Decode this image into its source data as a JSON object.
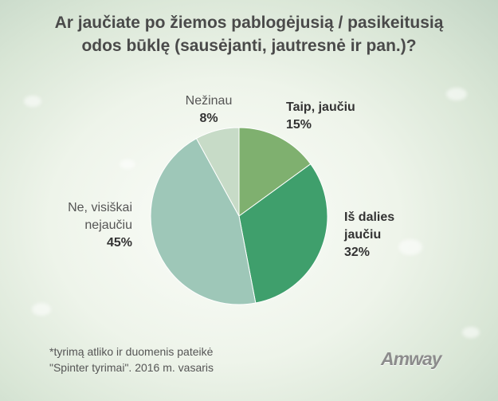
{
  "title": {
    "line1": "Ar jaučiate po žiemos pablogėjusią / pasikeitusią",
    "line2": "odos būklę (sausėjanti, jautresnė ir pan.)?"
  },
  "chart_data": {
    "type": "pie",
    "title": "Ar jaučiate po žiemos pablogėjusią / pasikeitusią odos būklę (sausėjanti, jautresnė ir pan.)?",
    "slices": [
      {
        "label_line1": "Taip, jaučiu",
        "label_line2": "",
        "value": 15,
        "display": "15%",
        "color": "#7fb06f"
      },
      {
        "label_line1": "Iš dalies",
        "label_line2": "jaučiu",
        "value": 32,
        "display": "32%",
        "color": "#3f9f6c"
      },
      {
        "label_line1": "Ne, visiškai",
        "label_line2": "nejaučiu",
        "value": 45,
        "display": "45%",
        "color": "#9ec7b8"
      },
      {
        "label_line1": "Nežinau",
        "label_line2": "",
        "value": 8,
        "display": "8%",
        "color": "#c7dbc7"
      }
    ],
    "start_angle_deg": 0,
    "direction": "clockwise"
  },
  "footnote": {
    "line1": "*tyrimą atliko ir duomenis pateikė",
    "line2": "\"Spinter tyrimai\". 2016 m. vasaris"
  },
  "logo": "Amway"
}
